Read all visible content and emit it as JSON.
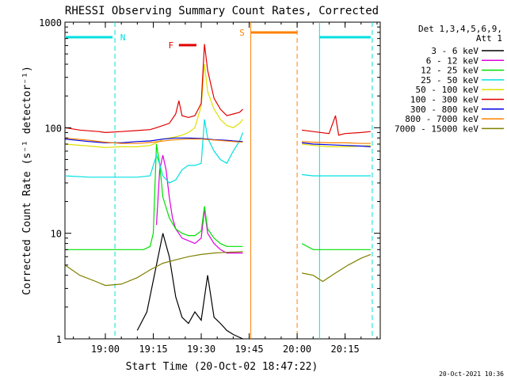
{
  "chart_data": {
    "type": "line",
    "title": "RHESSI Observing Summary Count Rates, Corrected",
    "xlabel": "Start Time (20-Oct-02 18:47:22)",
    "ylabel": "Corrected Count Rate (s⁻¹ detector⁻¹)",
    "yscale": "log",
    "xlim": [
      "18:47:22",
      "20:26:00"
    ],
    "ylim": [
      1,
      1000
    ],
    "x_ticks": [
      "19:00",
      "19:15",
      "19:30",
      "19:45",
      "20:00",
      "20:15"
    ],
    "y_ticks": [
      "1",
      "10",
      "100",
      "1000"
    ],
    "grid": false,
    "legend_position": "right",
    "detectors": "Det 1,3,4,5,6,9,",
    "attenuator": "Att 1",
    "footer_date": "20-Oct-2021 10:36",
    "flags": [
      {
        "label": "N",
        "type": "night",
        "color": "#00e0e0",
        "intervals": [
          [
            "18:47:22",
            "19:03:00"
          ],
          [
            "20:07:00",
            "20:23:30"
          ]
        ]
      },
      {
        "label": "F",
        "type": "flare",
        "color": "#e00000",
        "intervals": [
          [
            "19:23:00",
            "19:28:30"
          ]
        ]
      },
      {
        "label": "S",
        "type": "saa",
        "color": "#ff8000",
        "intervals": [
          [
            "19:45:30",
            "20:00:00"
          ]
        ]
      }
    ],
    "series": [
      {
        "name": "3 - 6 keV",
        "color": "#000000",
        "points": [
          [
            "19:10",
            1.2
          ],
          [
            "19:13",
            1.8
          ],
          [
            "19:16",
            5
          ],
          [
            "19:18",
            10
          ],
          [
            "19:20",
            6
          ],
          [
            "19:22",
            2.5
          ],
          [
            "19:24",
            1.6
          ],
          [
            "19:26",
            1.4
          ],
          [
            "19:28",
            1.8
          ],
          [
            "19:30",
            1.5
          ],
          [
            "19:32",
            4
          ],
          [
            "19:34",
            1.6
          ],
          [
            "19:36",
            1.4
          ],
          [
            "19:38",
            1.2
          ],
          [
            "19:40",
            1.1
          ],
          [
            "19:43",
            1.0
          ]
        ]
      },
      {
        "name": "6 - 12 keV",
        "color": "#e000e0",
        "points": [
          [
            "19:16",
            12
          ],
          [
            "19:17",
            40
          ],
          [
            "19:18",
            55
          ],
          [
            "19:19",
            40
          ],
          [
            "19:20",
            22
          ],
          [
            "19:21",
            14
          ],
          [
            "19:22",
            11
          ],
          [
            "19:24",
            9
          ],
          [
            "19:26",
            8.5
          ],
          [
            "19:28",
            8
          ],
          [
            "19:30",
            9
          ],
          [
            "19:31",
            17
          ],
          [
            "19:32",
            10
          ],
          [
            "19:34",
            8
          ],
          [
            "19:36",
            7
          ],
          [
            "19:38",
            6.5
          ],
          [
            "19:40",
            6.5
          ],
          [
            "19:42",
            6.5
          ],
          [
            "19:43",
            6.5
          ]
        ]
      },
      {
        "name": "12 - 25 keV",
        "color": "#00e000",
        "points": [
          [
            "18:47:22",
            7
          ],
          [
            "18:55",
            7
          ],
          [
            "19:00",
            7
          ],
          [
            "19:05",
            7
          ],
          [
            "19:10",
            7
          ],
          [
            "19:12",
            7
          ],
          [
            "19:14",
            7.5
          ],
          [
            "19:15",
            10
          ],
          [
            "19:16",
            70
          ],
          [
            "19:17",
            45
          ],
          [
            "19:18",
            22
          ],
          [
            "19:20",
            14
          ],
          [
            "19:22",
            11
          ],
          [
            "19:24",
            10
          ],
          [
            "19:26",
            9.5
          ],
          [
            "19:28",
            9.5
          ],
          [
            "19:30",
            10.5
          ],
          [
            "19:31",
            18
          ],
          [
            "19:32",
            11
          ],
          [
            "19:34",
            9
          ],
          [
            "19:36",
            8
          ],
          [
            "19:38",
            7.5
          ],
          [
            "19:40",
            7.5
          ],
          [
            "19:43",
            7.5
          ],
          [
            "20:01:30",
            8
          ],
          [
            "20:05",
            7
          ],
          [
            "20:10",
            7
          ],
          [
            "20:15",
            7
          ],
          [
            "20:20",
            7
          ],
          [
            "20:23",
            7
          ]
        ]
      },
      {
        "name": "25 - 50 keV",
        "color": "#00e0e0",
        "points": [
          [
            "18:47:22",
            35
          ],
          [
            "18:55",
            34
          ],
          [
            "19:00",
            34
          ],
          [
            "19:05",
            34
          ],
          [
            "19:10",
            34
          ],
          [
            "19:14",
            35
          ],
          [
            "19:16",
            55
          ],
          [
            "19:17",
            45
          ],
          [
            "19:18",
            35
          ],
          [
            "19:20",
            30
          ],
          [
            "19:22",
            32
          ],
          [
            "19:24",
            40
          ],
          [
            "19:26",
            44
          ],
          [
            "19:28",
            44
          ],
          [
            "19:30",
            46
          ],
          [
            "19:31",
            120
          ],
          [
            "19:32",
            80
          ],
          [
            "19:34",
            60
          ],
          [
            "19:36",
            50
          ],
          [
            "19:38",
            46
          ],
          [
            "19:40",
            60
          ],
          [
            "19:42",
            75
          ],
          [
            "19:43",
            90
          ],
          [
            "20:01:30",
            36
          ],
          [
            "20:05",
            35
          ],
          [
            "20:10",
            35
          ],
          [
            "20:15",
            35
          ],
          [
            "20:20",
            35
          ],
          [
            "20:23",
            35
          ]
        ]
      },
      {
        "name": "50 - 100 keV",
        "color": "#e0e000",
        "points": [
          [
            "18:47:22",
            70
          ],
          [
            "18:55",
            67
          ],
          [
            "19:00",
            65
          ],
          [
            "19:05",
            66
          ],
          [
            "19:10",
            66
          ],
          [
            "19:14",
            68
          ],
          [
            "19:16",
            72
          ],
          [
            "19:18",
            78
          ],
          [
            "19:20",
            80
          ],
          [
            "19:22",
            82
          ],
          [
            "19:24",
            85
          ],
          [
            "19:26",
            90
          ],
          [
            "19:28",
            100
          ],
          [
            "19:30",
            160
          ],
          [
            "19:31",
            400
          ],
          [
            "19:32",
            220
          ],
          [
            "19:34",
            150
          ],
          [
            "19:36",
            120
          ],
          [
            "19:38",
            105
          ],
          [
            "19:40",
            100
          ],
          [
            "19:42",
            110
          ],
          [
            "19:43",
            120
          ],
          [
            "20:01:30",
            70
          ],
          [
            "20:05",
            68
          ],
          [
            "20:10",
            66
          ],
          [
            "20:15",
            66
          ],
          [
            "20:20",
            67
          ],
          [
            "20:23",
            68
          ]
        ]
      },
      {
        "name": "100 - 300 keV",
        "color": "#e00000",
        "points": [
          [
            "18:47:22",
            100
          ],
          [
            "18:52",
            95
          ],
          [
            "18:58",
            92
          ],
          [
            "19:00",
            90
          ],
          [
            "19:05",
            92
          ],
          [
            "19:10",
            94
          ],
          [
            "19:14",
            96
          ],
          [
            "19:16",
            100
          ],
          [
            "19:20",
            110
          ],
          [
            "19:22",
            135
          ],
          [
            "19:23",
            180
          ],
          [
            "19:24",
            130
          ],
          [
            "19:26",
            125
          ],
          [
            "19:28",
            130
          ],
          [
            "19:30",
            170
          ],
          [
            "19:31",
            620
          ],
          [
            "19:32",
            350
          ],
          [
            "19:34",
            190
          ],
          [
            "19:36",
            150
          ],
          [
            "19:38",
            130
          ],
          [
            "19:40",
            135
          ],
          [
            "19:42",
            140
          ],
          [
            "19:43",
            150
          ],
          [
            "20:01:30",
            95
          ],
          [
            "20:05",
            92
          ],
          [
            "20:10",
            88
          ],
          [
            "20:12",
            130
          ],
          [
            "20:13",
            85
          ],
          [
            "20:15",
            88
          ],
          [
            "20:20",
            90
          ],
          [
            "20:23",
            92
          ]
        ]
      },
      {
        "name": "300 - 800 keV",
        "color": "#0000e0",
        "points": [
          [
            "18:47:22",
            78
          ],
          [
            "18:55",
            74
          ],
          [
            "19:00",
            72
          ],
          [
            "19:05",
            72
          ],
          [
            "19:10",
            74
          ],
          [
            "19:14",
            75
          ],
          [
            "19:18",
            78
          ],
          [
            "19:22",
            80
          ],
          [
            "19:26",
            80
          ],
          [
            "19:30",
            79
          ],
          [
            "19:34",
            77
          ],
          [
            "19:38",
            76
          ],
          [
            "19:40",
            75
          ],
          [
            "19:43",
            74
          ],
          [
            "20:01:30",
            72
          ],
          [
            "20:05",
            70
          ],
          [
            "20:10",
            69
          ],
          [
            "20:15",
            68
          ],
          [
            "20:20",
            67
          ],
          [
            "20:23",
            66
          ]
        ]
      },
      {
        "name": "800 - 7000 keV",
        "color": "#ff8000",
        "points": [
          [
            "18:47:22",
            80
          ],
          [
            "18:55",
            76
          ],
          [
            "19:00",
            73
          ],
          [
            "19:05",
            71
          ],
          [
            "19:10",
            71
          ],
          [
            "19:15",
            73
          ],
          [
            "19:20",
            76
          ],
          [
            "19:25",
            78
          ],
          [
            "19:30",
            78
          ],
          [
            "19:35",
            76
          ],
          [
            "19:40",
            74
          ],
          [
            "19:43",
            73
          ],
          [
            "20:01:30",
            74
          ],
          [
            "20:05",
            73
          ],
          [
            "20:10",
            72
          ],
          [
            "20:15",
            72
          ],
          [
            "20:20",
            71
          ],
          [
            "20:23",
            71
          ]
        ]
      },
      {
        "name": "7000 - 15000 keV",
        "color": "#808000",
        "points": [
          [
            "18:47:22",
            5
          ],
          [
            "18:52",
            4
          ],
          [
            "18:57",
            3.5
          ],
          [
            "19:00",
            3.2
          ],
          [
            "19:05",
            3.3
          ],
          [
            "19:10",
            3.8
          ],
          [
            "19:14",
            4.5
          ],
          [
            "19:18",
            5.2
          ],
          [
            "19:22",
            5.6
          ],
          [
            "19:26",
            6
          ],
          [
            "19:30",
            6.3
          ],
          [
            "19:34",
            6.5
          ],
          [
            "19:38",
            6.6
          ],
          [
            "19:43",
            6.7
          ],
          [
            "20:01:30",
            4.2
          ],
          [
            "20:05",
            4
          ],
          [
            "20:08",
            3.5
          ],
          [
            "20:12",
            4.2
          ],
          [
            "20:16",
            5
          ],
          [
            "20:20",
            5.8
          ],
          [
            "20:23",
            6.3
          ]
        ]
      }
    ]
  }
}
